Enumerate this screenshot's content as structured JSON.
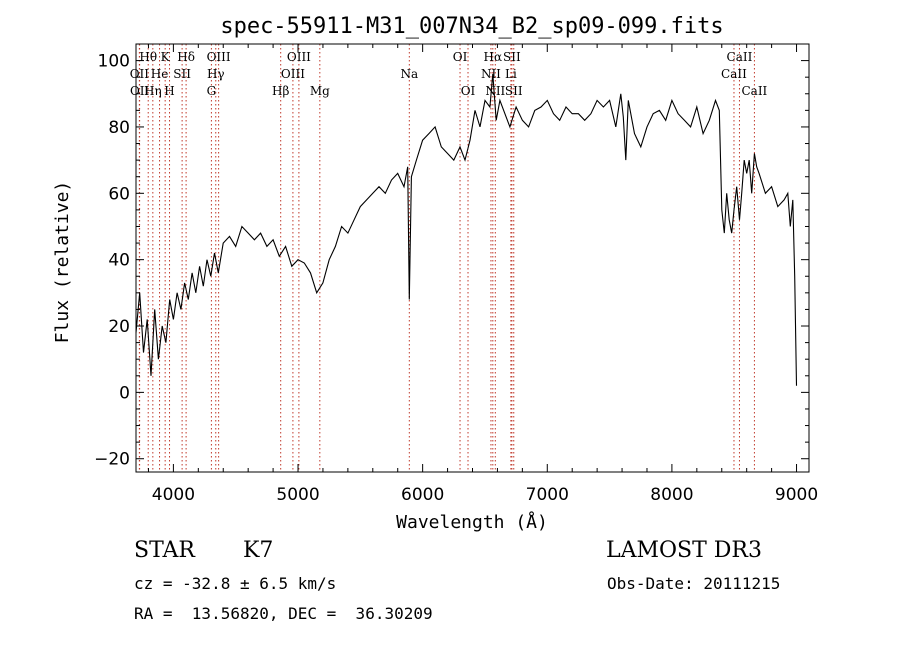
{
  "chart_data": {
    "type": "line",
    "title": "spec-55911-M31_007N34_B2_sp09-099.fits",
    "xlabel": "Wavelength (Å)",
    "ylabel": "Flux (relative)",
    "xlim": [
      3700,
      9100
    ],
    "ylim": [
      -24,
      105
    ],
    "xticks": [
      4000,
      5000,
      6000,
      7000,
      8000,
      9000
    ],
    "yticks": [
      -20,
      0,
      20,
      40,
      60,
      80,
      100
    ],
    "series": [
      {
        "name": "flux",
        "x": [
          3700,
          3730,
          3760,
          3790,
          3820,
          3850,
          3880,
          3910,
          3940,
          3970,
          4000,
          4030,
          4060,
          4090,
          4120,
          4150,
          4180,
          4210,
          4240,
          4270,
          4300,
          4330,
          4360,
          4400,
          4450,
          4500,
          4550,
          4600,
          4650,
          4700,
          4750,
          4800,
          4850,
          4900,
          4950,
          5000,
          5050,
          5100,
          5150,
          5200,
          5250,
          5300,
          5350,
          5400,
          5450,
          5500,
          5550,
          5600,
          5650,
          5700,
          5750,
          5800,
          5850,
          5880,
          5893,
          5910,
          5950,
          6000,
          6050,
          6100,
          6150,
          6200,
          6250,
          6300,
          6340,
          6380,
          6420,
          6460,
          6500,
          6540,
          6563,
          6590,
          6620,
          6660,
          6700,
          6750,
          6800,
          6850,
          6900,
          6950,
          7000,
          7050,
          7100,
          7150,
          7200,
          7250,
          7300,
          7350,
          7400,
          7450,
          7500,
          7550,
          7590,
          7610,
          7630,
          7650,
          7700,
          7750,
          7800,
          7850,
          7900,
          7950,
          8000,
          8050,
          8100,
          8150,
          8200,
          8250,
          8300,
          8350,
          8380,
          8400,
          8420,
          8440,
          8460,
          8480,
          8498,
          8520,
          8542,
          8560,
          8580,
          8600,
          8620,
          8640,
          8662,
          8680,
          8700,
          8750,
          8800,
          8850,
          8900,
          8930,
          8950,
          8970,
          8985,
          9000
        ],
        "values": [
          18,
          30,
          12,
          22,
          5,
          25,
          10,
          20,
          15,
          28,
          22,
          30,
          25,
          33,
          28,
          36,
          30,
          38,
          32,
          40,
          35,
          42,
          36,
          45,
          47,
          44,
          50,
          48,
          46,
          48,
          44,
          46,
          41,
          44,
          38,
          40,
          39,
          36,
          30,
          33,
          40,
          44,
          50,
          48,
          52,
          56,
          58,
          60,
          62,
          60,
          64,
          66,
          62,
          68,
          28,
          65,
          70,
          76,
          78,
          80,
          74,
          72,
          70,
          74,
          70,
          76,
          85,
          80,
          88,
          86,
          96,
          82,
          88,
          84,
          80,
          86,
          82,
          80,
          85,
          86,
          88,
          84,
          82,
          86,
          84,
          84,
          82,
          84,
          88,
          86,
          88,
          80,
          90,
          83,
          70,
          88,
          78,
          74,
          80,
          84,
          85,
          82,
          88,
          84,
          82,
          80,
          86,
          78,
          82,
          88,
          85,
          55,
          48,
          60,
          52,
          48,
          55,
          62,
          52,
          60,
          70,
          66,
          70,
          60,
          72,
          68,
          66,
          60,
          62,
          56,
          58,
          60,
          50,
          58,
          35,
          2
        ]
      }
    ],
    "spectral_lines": [
      {
        "label": "Hθ",
        "wavelength": 3798,
        "row": 0
      },
      {
        "label": "OII",
        "wavelength": 3727,
        "row": 1
      },
      {
        "label": "OII",
        "wavelength": 3729,
        "row": 2
      },
      {
        "label": "Hη",
        "wavelength": 3835,
        "row": 2
      },
      {
        "label": "He",
        "wavelength": 3889,
        "row": 1
      },
      {
        "label": "K",
        "wavelength": 3934,
        "row": 0
      },
      {
        "label": "H",
        "wavelength": 3969,
        "row": 2
      },
      {
        "label": "SII",
        "wavelength": 4070,
        "row": 1
      },
      {
        "label": "Hδ",
        "wavelength": 4102,
        "row": 0
      },
      {
        "label": "OIII",
        "wavelength": 4363,
        "row": 0
      },
      {
        "label": "Hγ",
        "wavelength": 4340,
        "row": 1
      },
      {
        "label": "G",
        "wavelength": 4305,
        "row": 2
      },
      {
        "label": "Hβ",
        "wavelength": 4861,
        "row": 2
      },
      {
        "label": "OIII",
        "wavelength": 4959,
        "row": 1
      },
      {
        "label": "OIII",
        "wavelength": 5007,
        "row": 0
      },
      {
        "label": "Mg",
        "wavelength": 5175,
        "row": 2
      },
      {
        "label": "Na",
        "wavelength": 5893,
        "row": 1
      },
      {
        "label": "OI",
        "wavelength": 6300,
        "row": 0
      },
      {
        "label": "OI",
        "wavelength": 6364,
        "row": 2
      },
      {
        "label": "NII",
        "wavelength": 6548,
        "row": 1
      },
      {
        "label": "Hα",
        "wavelength": 6563,
        "row": 0
      },
      {
        "label": "NII",
        "wavelength": 6583,
        "row": 2
      },
      {
        "label": "Li",
        "wavelength": 6708,
        "row": 1
      },
      {
        "label": "SII",
        "wavelength": 6716,
        "row": 0
      },
      {
        "label": "SII",
        "wavelength": 6731,
        "row": 2
      },
      {
        "label": "CaII",
        "wavelength": 8498,
        "row": 1
      },
      {
        "label": "CaII",
        "wavelength": 8542,
        "row": 0
      },
      {
        "label": "CaII",
        "wavelength": 8662,
        "row": 2
      }
    ]
  },
  "info": {
    "class_label": "STAR",
    "subclass": "K7",
    "survey": "LAMOST DR3",
    "redshift": "cz = -32.8 ± 6.5 km/s",
    "obs_date": "Obs-Date: 20111215",
    "coords": "RA =  13.56820, DEC =  36.30209"
  },
  "colors": {
    "line_marker": "#c0392b",
    "spectrum": "#000000",
    "axis": "#000000"
  }
}
